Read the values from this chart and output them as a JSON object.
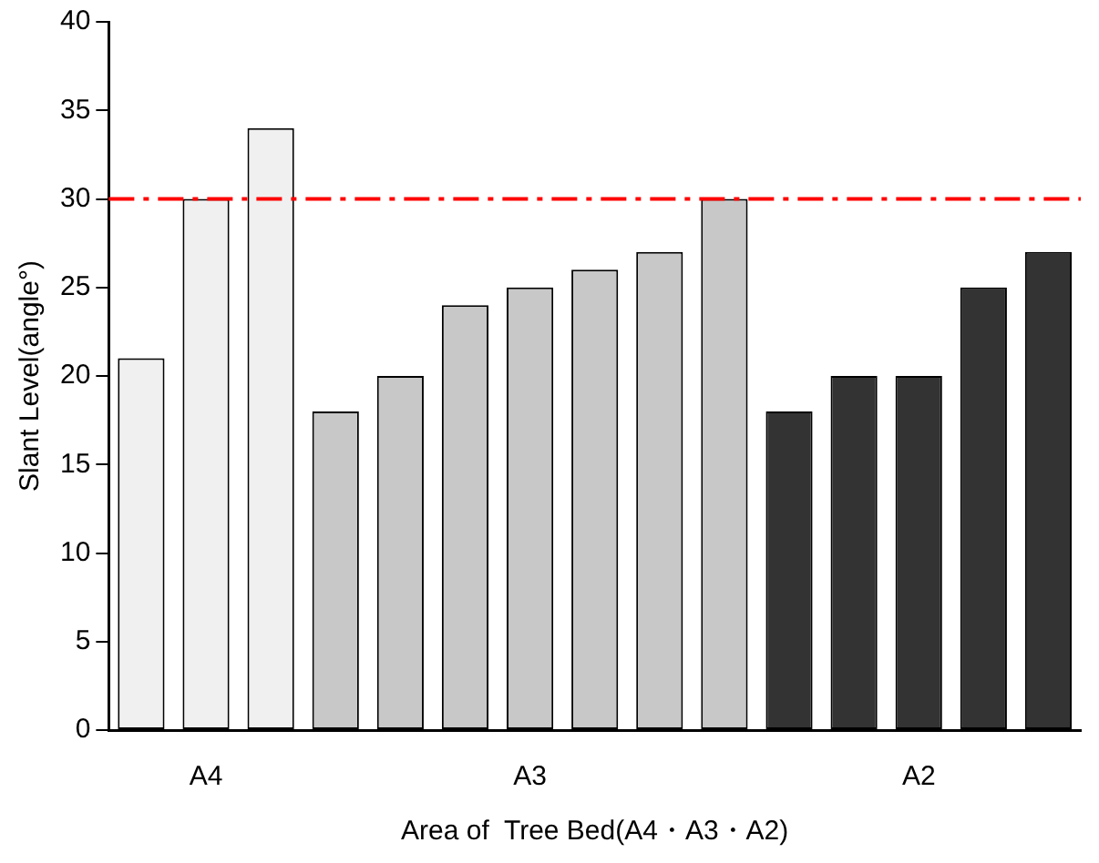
{
  "chart_data": {
    "type": "bar",
    "xlabel": "Area of  Tree Bed(A4・A3・A2)",
    "ylabel": "Slant Level(angle°)",
    "categories": [
      null,
      "A4",
      null,
      null,
      null,
      null,
      "A3",
      null,
      null,
      null,
      null,
      null,
      "A2",
      null,
      null
    ],
    "values": [
      21,
      30,
      34,
      18,
      20,
      24,
      25,
      26,
      27,
      30,
      18,
      20,
      20,
      25,
      27
    ],
    "colors": [
      "#f0f0f0",
      "#f0f0f0",
      "#f0f0f0",
      "#c8c8c8",
      "#c8c8c8",
      "#c8c8c8",
      "#c8c8c8",
      "#c8c8c8",
      "#c8c8c8",
      "#c8c8c8",
      "#333333",
      "#333333",
      "#333333",
      "#333333",
      "#333333"
    ],
    "ylim": [
      0,
      40
    ],
    "yticks": [
      0,
      5,
      10,
      15,
      20,
      25,
      30,
      35,
      40
    ],
    "grid": false,
    "legend": false,
    "ref_lines": [
      {
        "axis": "y",
        "value": 30,
        "color": "#ff0000",
        "line_style": "dashed"
      }
    ]
  }
}
